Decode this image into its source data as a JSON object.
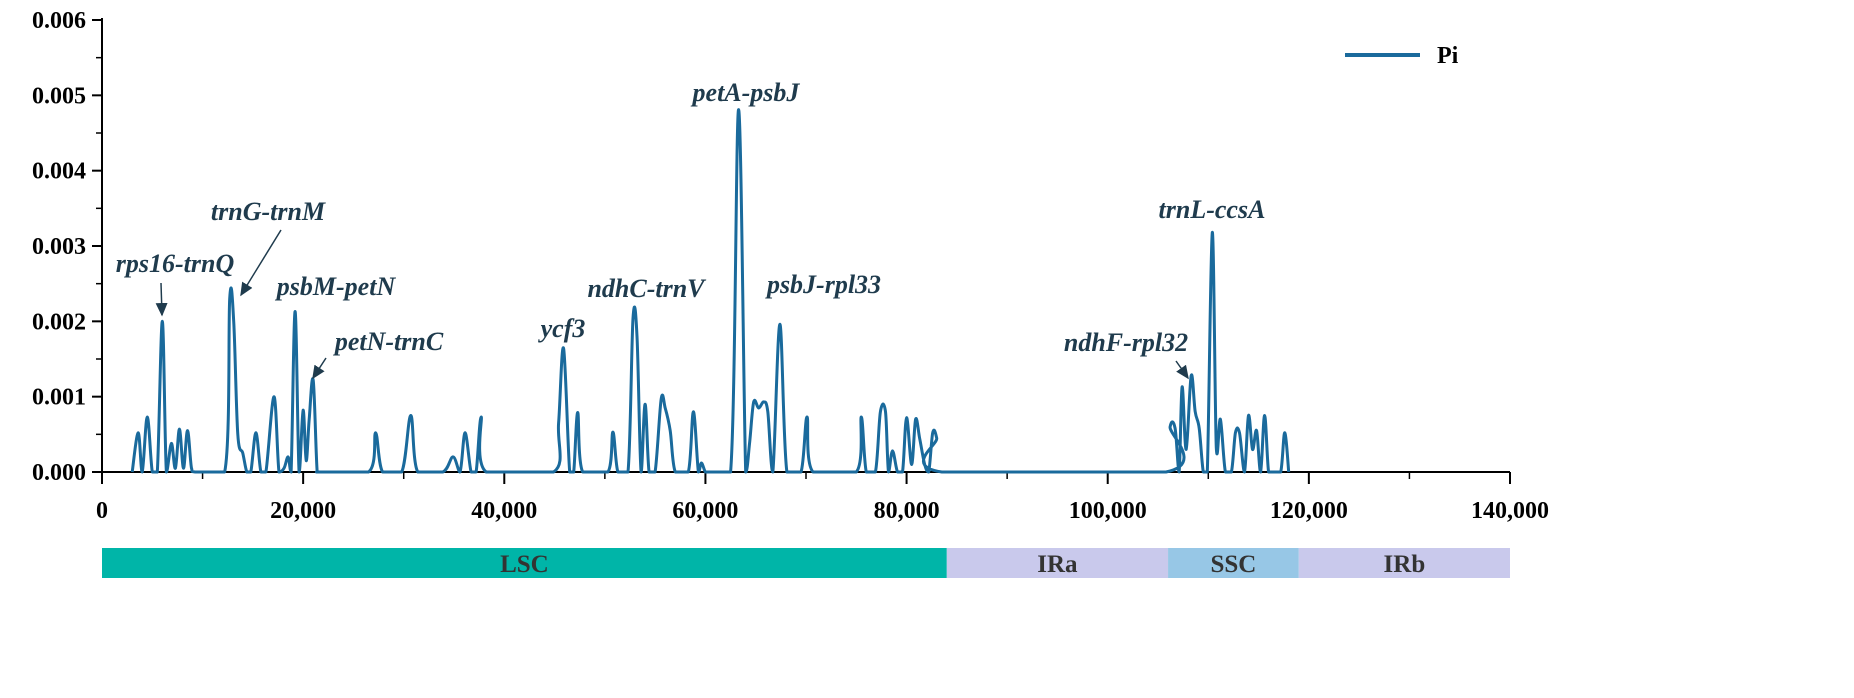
{
  "chart_data": {
    "type": "line",
    "xlim": [
      0,
      140000
    ],
    "ylim": [
      0,
      0.006
    ],
    "x_ticks": [
      0,
      20000,
      40000,
      60000,
      80000,
      100000,
      120000,
      140000
    ],
    "x_tick_labels": [
      "0",
      "20,000",
      "40,000",
      "60,000",
      "80,000",
      "100,000",
      "120,000",
      "140,000"
    ],
    "y_ticks": [
      0,
      0.001,
      0.002,
      0.003,
      0.004,
      0.005,
      0.006
    ],
    "y_tick_labels": [
      "0.000",
      "0.001",
      "0.002",
      "0.003",
      "0.004",
      "0.005",
      "0.006"
    ],
    "grid": false,
    "legend_position": "top-right",
    "series": [
      {
        "name": "Pi",
        "color": "#1a6a9c",
        "x": [
          3000,
          3600,
          4000,
          4500,
          5000,
          5500,
          6000,
          6400,
          6900,
          7300,
          7700,
          8100,
          8500,
          8900,
          9300,
          12200,
          12700,
          13100,
          13500,
          14000,
          14400,
          14800,
          15300,
          15800,
          16300,
          17100,
          17600,
          18100,
          18500,
          18800,
          19200,
          19600,
          20000,
          20300,
          20600,
          21000,
          21400,
          21800,
          26500,
          27200,
          27900,
          29800,
          30700,
          31400,
          33900,
          34900,
          35600,
          36100,
          36700,
          37200,
          37700,
          38200,
          44900,
          45400,
          45900,
          46500,
          46900,
          47300,
          47800,
          50300,
          50800,
          51300,
          52300,
          52800,
          53200,
          53600,
          54000,
          54400,
          55000,
          55600,
          56000,
          56500,
          57000,
          58300,
          58800,
          59300,
          59600,
          60000,
          60400,
          62500,
          63300,
          64000,
          64400,
          64800,
          65300,
          65800,
          66200,
          66700,
          67400,
          68100,
          69500,
          70100,
          70700,
          75000,
          75500,
          76000,
          76900,
          77400,
          77900,
          78200,
          78600,
          79100,
          79600,
          80000,
          80500,
          80900,
          81300,
          81800,
          82200,
          82600,
          83000,
          83500,
          105800,
          106200,
          106700,
          107100,
          107400,
          107800,
          108300,
          108700,
          109100,
          109500,
          109900,
          110400,
          110800,
          111200,
          111700,
          112300,
          112700,
          113100,
          113600,
          114000,
          114400,
          114800,
          115200,
          115600,
          116000,
          116500,
          117200,
          117600,
          118000
        ],
        "y": [
          0,
          0.00052,
          0,
          0.00073,
          0,
          0,
          0.002,
          0,
          0.00038,
          5e-05,
          0.00057,
          5e-05,
          0.00055,
          5e-05,
          0,
          0,
          0.0023,
          0.002,
          0.0005,
          0.00025,
          0,
          0,
          0.00052,
          0,
          0,
          0.001,
          0,
          5e-05,
          0.0002,
          0,
          0.00213,
          0,
          0.00082,
          0.00015,
          0.0007,
          0.00122,
          0,
          0,
          0,
          0.00052,
          0,
          0,
          0.00075,
          0,
          0,
          0.0002,
          0,
          0.00052,
          0,
          0,
          0.00073,
          0,
          0,
          0.00065,
          0.00164,
          0,
          0,
          0.00079,
          0,
          0,
          0.00053,
          0,
          0,
          0.00204,
          0.0018,
          0,
          0.0009,
          0,
          0,
          0.00097,
          0.00085,
          0.00055,
          0,
          0,
          0.0008,
          0,
          0.00012,
          0,
          0,
          0,
          0.00481,
          0,
          0.0004,
          0.00093,
          0.00085,
          0.00093,
          0.0008,
          0,
          0.00196,
          0,
          0,
          0.00073,
          0,
          0,
          0.00073,
          0,
          0,
          0.0008,
          0.0008,
          0,
          0.00028,
          0,
          0,
          0.00072,
          0.0001,
          0.0007,
          0.00045,
          0.0001,
          0,
          0.00052,
          0.00045,
          0,
          0,
          0.0006,
          0.00058,
          0,
          0.00113,
          0.0003,
          0.00128,
          0.0008,
          0.00058,
          0,
          0,
          0.00318,
          0.00032,
          0.0007,
          0,
          0,
          0.00052,
          0.00052,
          0,
          0.00075,
          0.0003,
          0.00055,
          0,
          0.00075,
          0,
          0,
          0,
          0.00052,
          0
        ]
      }
    ],
    "annotations": [
      {
        "text": "rps16-trnQ",
        "x": 6000,
        "y": 0.002,
        "arrow": true
      },
      {
        "text": "trnG-trnM",
        "x": 13800,
        "y": 0.0024,
        "arrow": true
      },
      {
        "text": "psbM-petN",
        "x": 19200,
        "y": 0.00213,
        "arrow": false
      },
      {
        "text": "petN-trnC",
        "x": 21000,
        "y": 0.00122,
        "arrow": true
      },
      {
        "text": "ycf3",
        "x": 45900,
        "y": 0.00164,
        "arrow": false
      },
      {
        "text": "ndhC-trnV",
        "x": 52800,
        "y": 0.00204,
        "arrow": false
      },
      {
        "text": "petA-psbJ",
        "x": 63300,
        "y": 0.00481,
        "arrow": false
      },
      {
        "text": "psbJ-rpl33",
        "x": 67400,
        "y": 0.00196,
        "arrow": false
      },
      {
        "text": "ndhF-rpl32",
        "x": 108300,
        "y": 0.00128,
        "arrow": true
      },
      {
        "text": "trnL-ccsA",
        "x": 110400,
        "y": 0.00318,
        "arrow": false
      }
    ],
    "regions": [
      {
        "name": "LSC",
        "start": 0,
        "end": 84000,
        "color": "#00b5a8"
      },
      {
        "name": "IRa",
        "start": 84000,
        "end": 106000,
        "color": "#c9c9ec"
      },
      {
        "name": "SSC",
        "start": 106000,
        "end": 119000,
        "color": "#97c7e6"
      },
      {
        "name": "IRb",
        "start": 119000,
        "end": 140000,
        "color": "#c9c9ec"
      }
    ]
  }
}
